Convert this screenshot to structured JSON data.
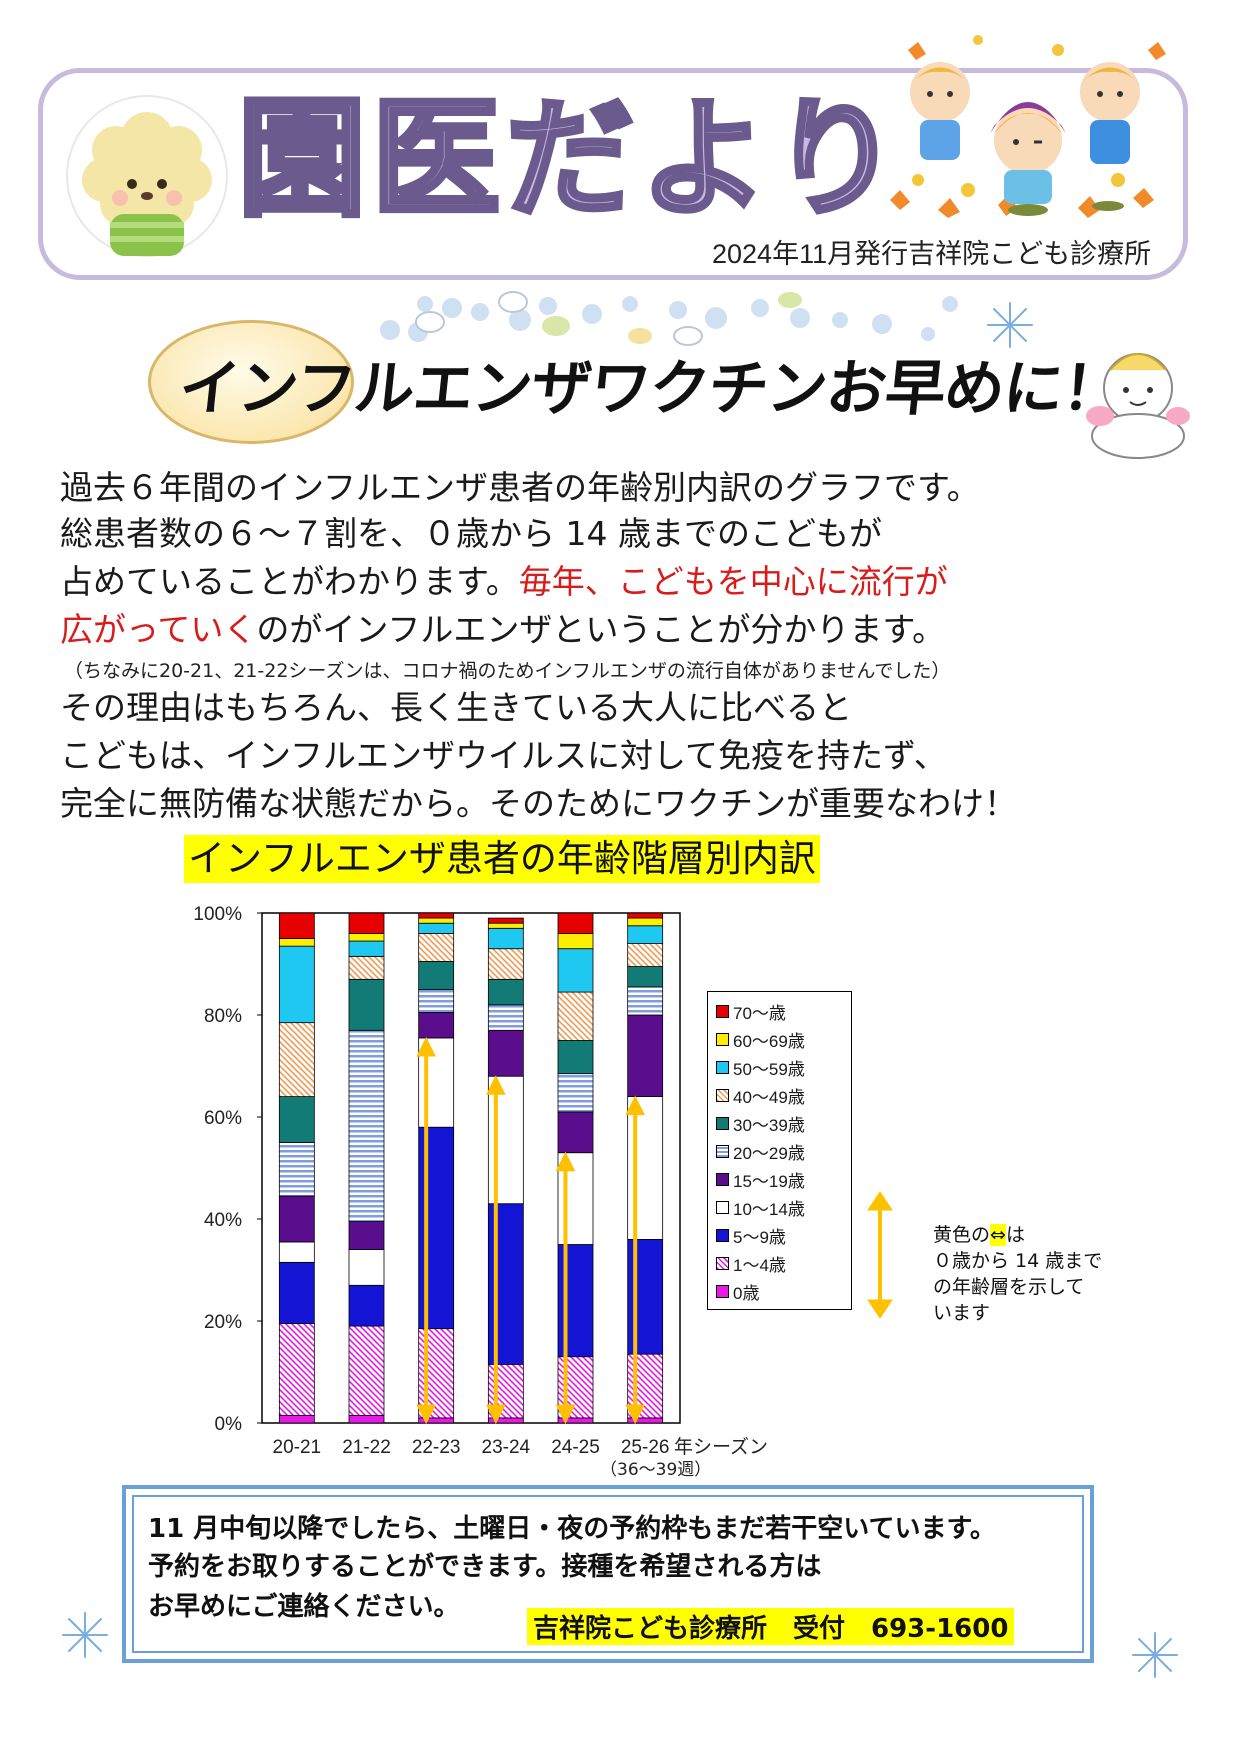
{
  "header": {
    "title": "園医だより",
    "issue_line": "2024年11月発行吉祥院こども診療所"
  },
  "headline": "インフルエンザワクチンお早めに！",
  "body": {
    "line1": "過去６年間のインフルエンザ患者の年齢別内訳のグラフです。",
    "line2": "総患者数の６〜７割を、０歳から 14 歳までのこどもが",
    "line3_plain": "占めていることがわかります。",
    "line3_red": "毎年、こどもを中心に流行が",
    "line4_red": "広がっていく",
    "line4_plain": "のがインフルエンザということが分かります。",
    "note": "（ちなみに20-21、21-22シーズンは、コロナ禍のためインフルエンザの流行自体がありませんでした）",
    "line5": "その理由はもちろん、長く生きている大人に比べると",
    "line6": "こどもは、インフルエンザウイルスに対して免疫を持たず、",
    "line7": "完全に無防備な状態だから。そのためにワクチンが重要なわけ！"
  },
  "chart_title": "インフルエンザ患者の年齢階層別内訳",
  "chart_data": {
    "type": "bar",
    "stacked": true,
    "percent": true,
    "categories": [
      "20-21",
      "21-22",
      "22-23",
      "23-24",
      "24-25",
      "25-26"
    ],
    "x_unit_label": "年シーズン",
    "x_unit_sub": "（36〜39週）",
    "yticks": [
      "0%",
      "20%",
      "40%",
      "60%",
      "80%",
      "100%"
    ],
    "ylim": [
      0,
      100
    ],
    "legend_position": "right",
    "series": [
      {
        "name": "0歳",
        "color": "#e619e6",
        "pattern": "solid",
        "values": [
          1.5,
          1.5,
          1,
          1,
          1,
          1
        ]
      },
      {
        "name": "1〜4歳",
        "color": "#e619e6",
        "pattern": "diag",
        "values": [
          18,
          17.5,
          17.5,
          10.5,
          12,
          12.5
        ]
      },
      {
        "name": "5〜9歳",
        "color": "#1414d4",
        "pattern": "solid",
        "values": [
          12,
          8,
          39.5,
          31.5,
          22,
          22.5
        ]
      },
      {
        "name": "10〜14歳",
        "color": "#ffffff",
        "pattern": "solid",
        "values": [
          4,
          7,
          17.5,
          25,
          18,
          28
        ]
      },
      {
        "name": "15〜19歳",
        "color": "#5a0d8c",
        "pattern": "solid",
        "values": [
          9,
          5.5,
          5,
          9,
          8,
          16
        ]
      },
      {
        "name": "20〜29歳",
        "color": "#7f9cde",
        "pattern": "hstripe",
        "values": [
          10.5,
          37.5,
          4.5,
          5,
          7.5,
          5.5
        ]
      },
      {
        "name": "30〜39歳",
        "color": "#137b76",
        "pattern": "solid",
        "values": [
          9,
          10,
          5.5,
          5,
          6.5,
          4
        ]
      },
      {
        "name": "40〜49歳",
        "color": "#f19a55",
        "pattern": "diag",
        "values": [
          14.5,
          4.5,
          5.5,
          6,
          9.5,
          4.5
        ]
      },
      {
        "name": "50〜59歳",
        "color": "#1ec8f0",
        "pattern": "solid",
        "values": [
          15,
          3,
          2,
          4,
          8.5,
          3.5
        ]
      },
      {
        "name": "60〜69歳",
        "color": "#ffee00",
        "pattern": "solid",
        "values": [
          1.5,
          1.5,
          1,
          1,
          3,
          1.5
        ]
      },
      {
        "name": "70〜歳",
        "color": "#e60000",
        "pattern": "solid",
        "values": [
          5,
          4,
          1,
          1,
          4,
          1
        ]
      }
    ],
    "child_range_arrows": [
      {
        "category": "22-23",
        "from": 0,
        "to": 75.5
      },
      {
        "category": "23-24",
        "from": 0,
        "to": 68
      },
      {
        "category": "24-25",
        "from": 0,
        "to": 53
      },
      {
        "category": "25-26",
        "from": 0,
        "to": 64
      }
    ],
    "arrow_color": "#ffc000"
  },
  "side_note": {
    "prefix": "黄色の",
    "arrow_glyph": "⇔",
    "suffix": "は",
    "line2": "０歳から 14 歳まで",
    "line3": "の年齢層を示して",
    "line4": "います"
  },
  "contact": {
    "line1": "11 月中旬以降でしたら、土曜日・夜の予約枠もまだ若干空いています。",
    "line2": "予約をお取りすることができます。接種を希望される方は",
    "line3": "お早めにご連絡ください。",
    "highlight": "吉祥院こども診療所　受付　693-1600"
  },
  "colors": {
    "header_border": "#c6bbdc",
    "title_fill": "#c9b8e6",
    "title_stroke": "#6a5a8e",
    "emphasis_red": "#d81c1c",
    "highlight_yellow": "#ffff00",
    "contact_border": "#6aa0d8"
  }
}
